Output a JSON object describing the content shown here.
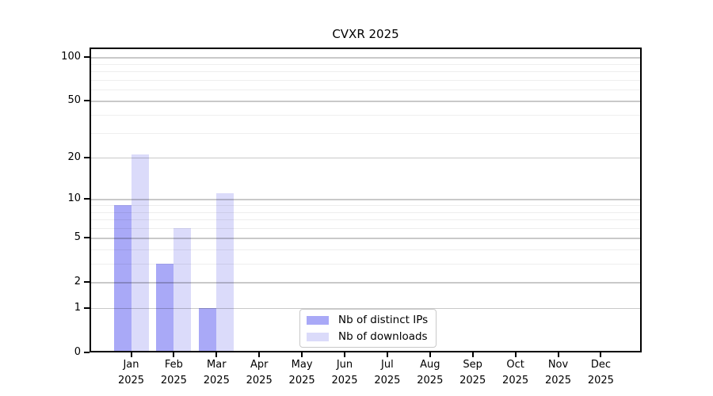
{
  "chart_data": {
    "type": "bar",
    "title": "CVXR 2025",
    "categories": [
      "Jan 2025",
      "Feb 2025",
      "Mar 2025",
      "Apr 2025",
      "May 2025",
      "Jun 2025",
      "Jul 2025",
      "Aug 2025",
      "Sep 2025",
      "Oct 2025",
      "Nov 2025",
      "Dec 2025"
    ],
    "series": [
      {
        "name": "Nb of distinct IPs",
        "color": "#a9a9f7",
        "values": [
          9,
          3,
          1,
          0,
          0,
          0,
          0,
          0,
          0,
          0,
          0,
          0
        ]
      },
      {
        "name": "Nb of downloads",
        "color": "#dbdbfa",
        "values": [
          21,
          6,
          11,
          0,
          0,
          0,
          0,
          0,
          0,
          0,
          0,
          0
        ]
      }
    ],
    "xlabel": "",
    "ylabel": "",
    "yscale": "log10(1+value)",
    "ylim": [
      0,
      116
    ],
    "yticks": [
      0,
      1,
      2,
      5,
      10,
      20,
      50,
      100
    ],
    "minor_gridlines": [
      3,
      4,
      6,
      7,
      8,
      9,
      30,
      40,
      60,
      70,
      80,
      90
    ],
    "grid": true,
    "legend_position": "lower center",
    "colors": {
      "background": "#ffffff",
      "spine": "#000000",
      "grid_major": "#c9c9c9",
      "grid_minor": "#ededed",
      "legend_border": "#c9c9c9"
    }
  }
}
